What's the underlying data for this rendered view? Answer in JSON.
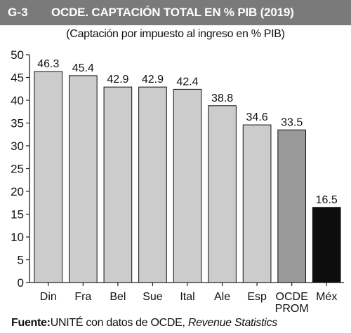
{
  "header": {
    "figure_id": "G-3",
    "title": "OCDE. CAPTACIÓN TOTAL EN % PIB (2019)"
  },
  "subtitle": "(Captación por impuesto al ingreso en % PIB)",
  "source": {
    "label": "Fuente:",
    "text": "UNITÉ con datos de OCDE, ",
    "italic": "Revenue Statistics"
  },
  "colors": {
    "header_bg": "#7a7a7a",
    "bar_default": "#cccccc",
    "bar_average": "#9a9a9a",
    "bar_mexico": "#0d0d0d"
  },
  "chart_data": {
    "type": "bar",
    "categories": [
      "Din",
      "Fra",
      "Bel",
      "Sue",
      "Ital",
      "Ale",
      "Esp",
      "OCDE PROM",
      "Méx"
    ],
    "category_lines": [
      [
        "Din"
      ],
      [
        "Fra"
      ],
      [
        "Bel"
      ],
      [
        "Sue"
      ],
      [
        "Ital"
      ],
      [
        "Ale"
      ],
      [
        "Esp"
      ],
      [
        "OCDE",
        "PROM"
      ],
      [
        "Méx"
      ]
    ],
    "values": [
      46.3,
      45.4,
      42.9,
      42.9,
      42.4,
      38.8,
      34.6,
      33.5,
      16.5
    ],
    "data_labels": [
      "46.3",
      "45.4",
      "42.9",
      "42.9",
      "42.4",
      "38.8",
      "34.6",
      "33.5",
      "16.5"
    ],
    "bar_color_keys": [
      "bar_default",
      "bar_default",
      "bar_default",
      "bar_default",
      "bar_default",
      "bar_default",
      "bar_default",
      "bar_average",
      "bar_mexico"
    ],
    "ylim": [
      0,
      50
    ],
    "yticks": [
      0,
      5,
      10,
      15,
      20,
      25,
      30,
      35,
      40,
      45,
      50
    ],
    "grid": false,
    "legend": false
  }
}
